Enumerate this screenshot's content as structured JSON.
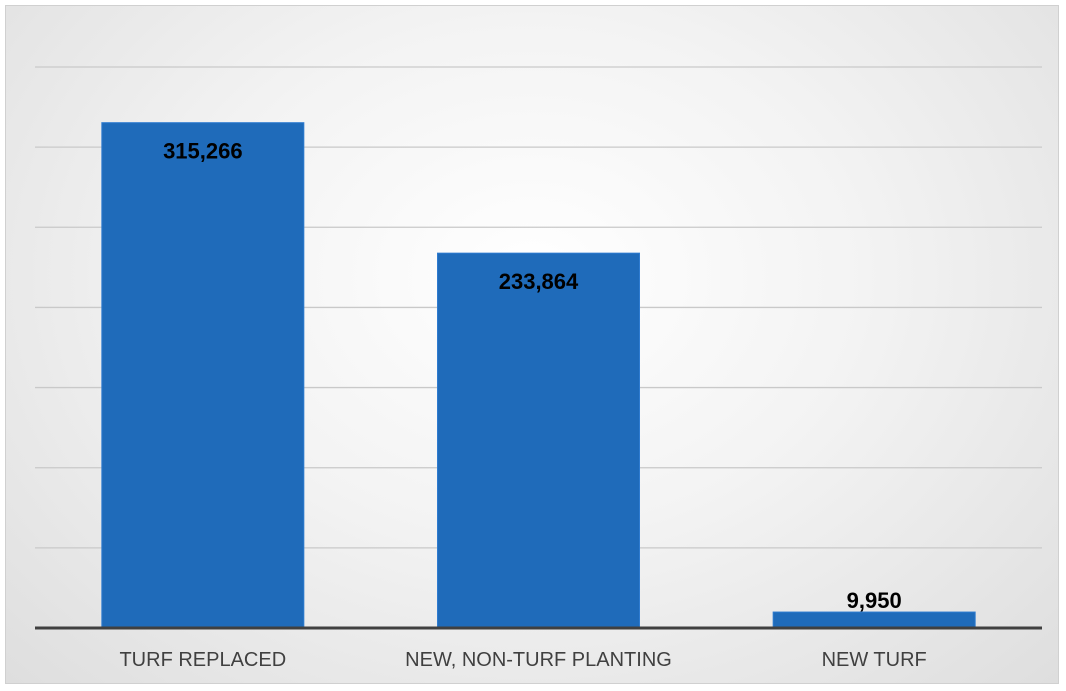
{
  "chart_data": {
    "type": "bar",
    "categories": [
      "TURF REPLACED",
      "NEW, NON-TURF PLANTING",
      "NEW TURF"
    ],
    "values": [
      315266,
      233864,
      9950
    ],
    "value_labels": [
      "315,266",
      "233,864",
      "9,950"
    ],
    "title": "",
    "xlabel": "",
    "ylabel": "",
    "ylim": [
      0,
      350000
    ],
    "ytick_step": 50000,
    "grid": true,
    "legend": "none",
    "colors": {
      "bar": "#1F6BBA",
      "bar_edge": "#2E7BD0",
      "gridline": "#c9c9c9",
      "axis": "#404040"
    }
  }
}
